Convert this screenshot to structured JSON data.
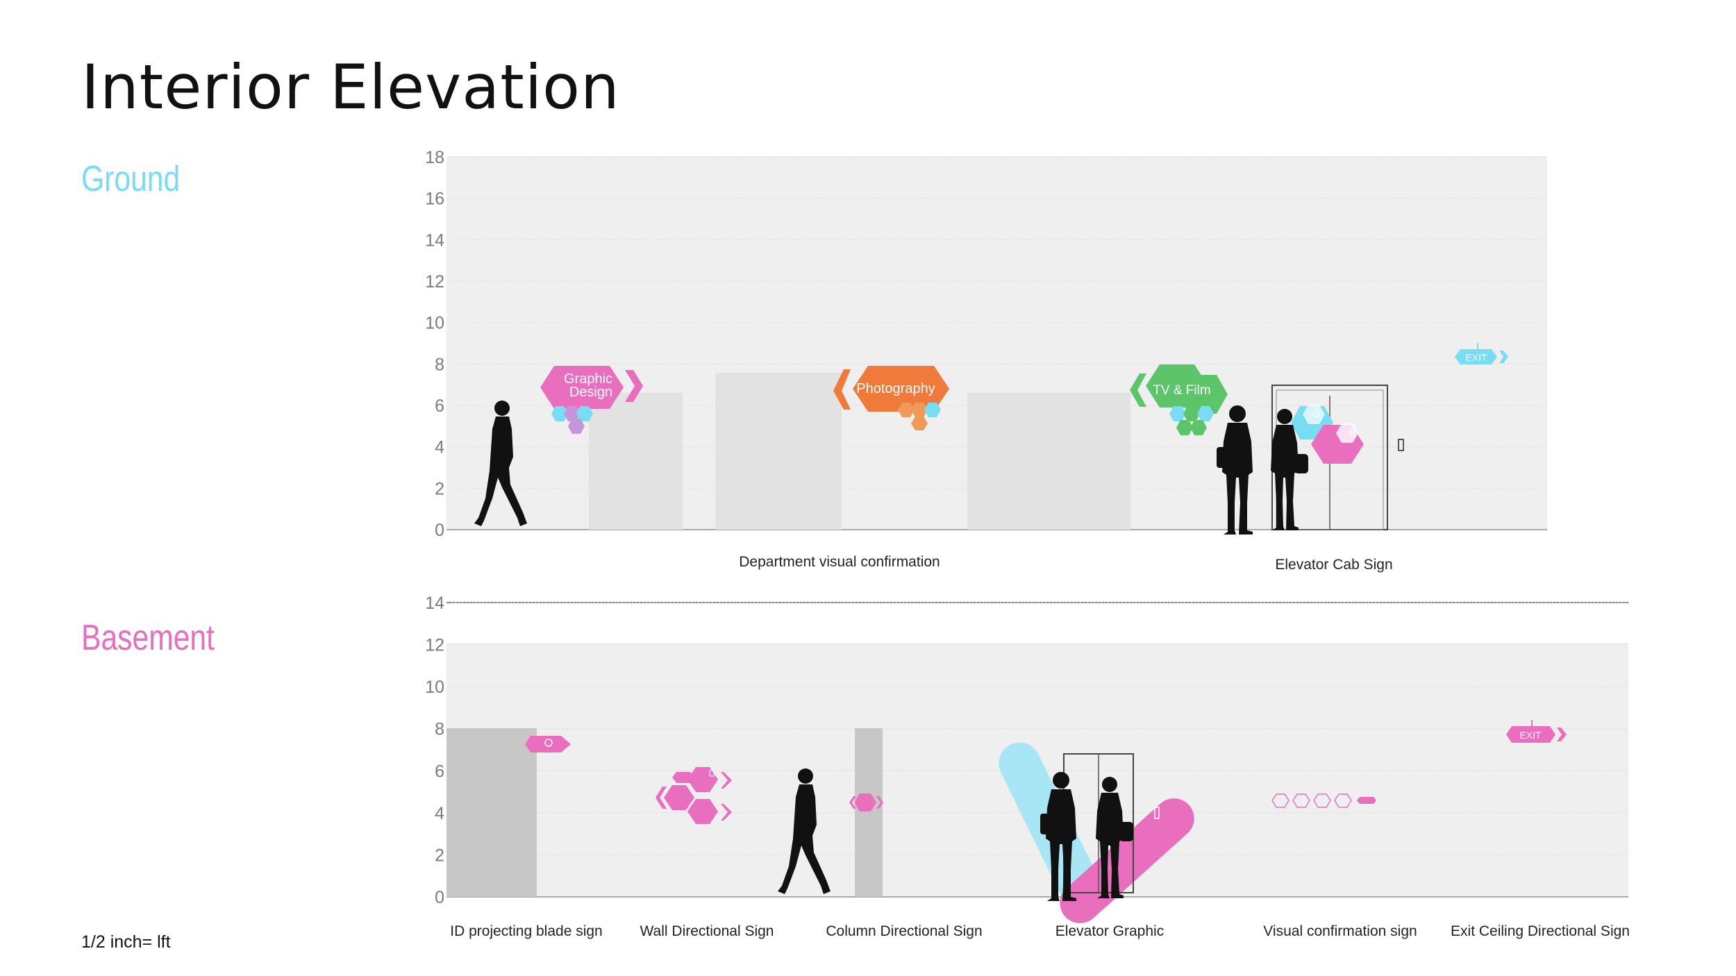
{
  "title": "Interior Elevation",
  "scale_note": "1/2 inch= lft",
  "colors": {
    "ground_accent": "#78dcf2",
    "basement_accent": "#e96fbe",
    "magenta": "#e96fbe",
    "orange": "#ef7a3a",
    "green": "#5cc56a",
    "cyan": "#78dcf2",
    "panel_bg": "#efefef",
    "wall": "#e2e2e2",
    "wall_dark": "#c7c7c7"
  },
  "ground": {
    "heading": "Ground",
    "y_axis_ticks": [
      "18",
      "16",
      "14",
      "12",
      "10",
      "8",
      "6",
      "4",
      "2",
      "0"
    ],
    "signs": {
      "graphic_design_line1": "Graphic",
      "graphic_design_line2": "Design",
      "photography": "Photography",
      "tv_film": "TV & Film",
      "exit": "EXIT",
      "elevator_g": "G",
      "elevator_b": "B"
    },
    "captions": {
      "department": "Department visual confirmation",
      "elevator_cab": "Elevator Cab Sign"
    }
  },
  "basement": {
    "heading": "Basement",
    "y_axis_ticks": [
      "14",
      "12",
      "10",
      "8",
      "6",
      "4",
      "2",
      "0"
    ],
    "signs": {
      "exit": "EXIT"
    },
    "captions": {
      "id_blade": "ID projecting blade sign",
      "wall_directional": "Wall Directional Sign",
      "column_directional": "Column Directional Sign",
      "elevator_graphic": "Elevator Graphic",
      "visual_confirmation": "Visual confirmation sign",
      "exit_ceiling": "Exit Ceiling Directional Sign"
    }
  }
}
